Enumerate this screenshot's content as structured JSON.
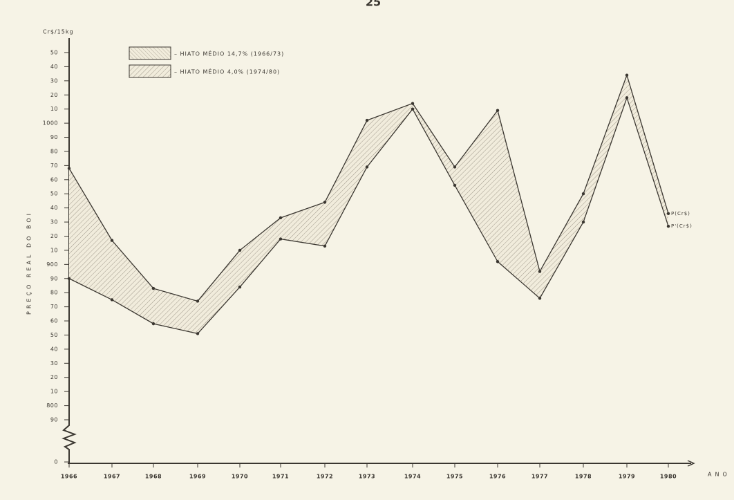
{
  "page_number": "25",
  "chart_data": {
    "type": "line",
    "y_unit": "Cr$/15kg",
    "y_label": "PREÇO REAL DO BOI",
    "x_label": "ANO",
    "categories": [
      "1966",
      "1967",
      "1968",
      "1969",
      "1970",
      "1971",
      "1972",
      "1973",
      "1974",
      "1975",
      "1976",
      "1977",
      "1978",
      "1979",
      "1980"
    ],
    "series": [
      {
        "name": "P(Cr$)",
        "color": "#3a3630",
        "values": [
          968,
          917,
          883,
          874,
          910,
          933,
          944,
          1002,
          1014,
          969,
          1009,
          895,
          950,
          1034,
          936
        ]
      },
      {
        "name": "P'(Cr$)",
        "color": "#3a3630",
        "values": [
          890,
          875,
          858,
          851,
          884,
          918,
          913,
          969,
          1010,
          956,
          902,
          876,
          930,
          1018,
          927
        ]
      }
    ],
    "legend": [
      "– HIATO MÉDIO 14,7% (1966/73)",
      "– HIATO MÉDIO 4,0% (1974/80)"
    ],
    "ylim": [
      790,
      1050
    ],
    "axis_break": true,
    "yticks": [
      {
        "value": 1050,
        "label": "50"
      },
      {
        "value": 1040,
        "label": "40"
      },
      {
        "value": 1030,
        "label": "30"
      },
      {
        "value": 1020,
        "label": "20"
      },
      {
        "value": 1010,
        "label": "10"
      },
      1000,
      {
        "value": 990,
        "label": "90"
      },
      {
        "value": 980,
        "label": "80"
      },
      {
        "value": 970,
        "label": "70"
      },
      {
        "value": 960,
        "label": "60"
      },
      {
        "value": 950,
        "label": "50"
      },
      {
        "value": 940,
        "label": "40"
      },
      {
        "value": 930,
        "label": "30"
      },
      {
        "value": 920,
        "label": "20"
      },
      {
        "value": 910,
        "label": "10"
      },
      900,
      {
        "value": 890,
        "label": "90"
      },
      {
        "value": 880,
        "label": "80"
      },
      {
        "value": 870,
        "label": "70"
      },
      {
        "value": 860,
        "label": "60"
      },
      {
        "value": 850,
        "label": "50"
      },
      {
        "value": 840,
        "label": "40"
      },
      {
        "value": 830,
        "label": "30"
      },
      {
        "value": 820,
        "label": "20"
      },
      {
        "value": 810,
        "label": "10"
      },
      800,
      {
        "value": 790,
        "label": "90"
      },
      0
    ]
  }
}
